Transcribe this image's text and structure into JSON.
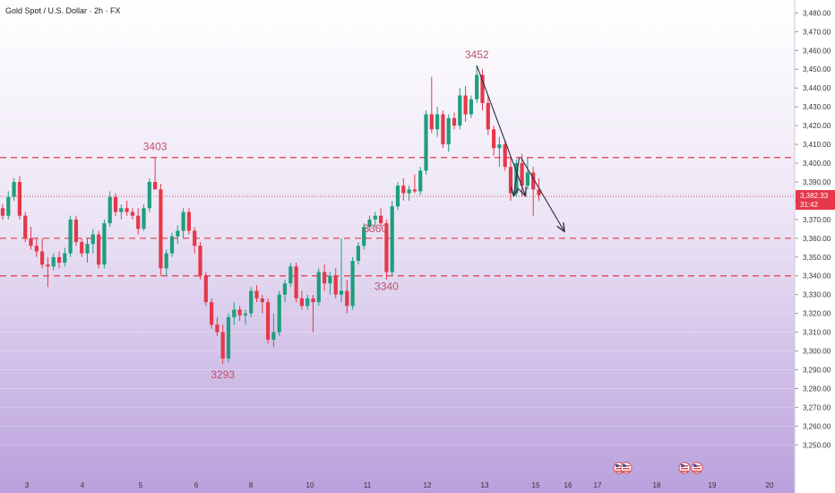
{
  "header": {
    "title": "Gold Spot / U.S. Dollar · 2h · FX"
  },
  "price_tag": {
    "price": "3,382.33",
    "countdown": "31:42",
    "color": "#e5384a"
  },
  "colors": {
    "up": "#1e9e7e",
    "down": "#e5384a",
    "level_line": "#e23a4a",
    "background_top": "#ffffff",
    "background_bottom": "#b9a0dc"
  },
  "event_icons": [
    "flag-us-icon",
    "flag-us-icon",
    "flag-us-icon",
    "flag-us-icon"
  ],
  "chart_data": {
    "type": "candlestick",
    "title": "Gold Spot / U.S. Dollar · 2h · FX",
    "y_ticks": [
      3250,
      3260,
      3270,
      3280,
      3290,
      3300,
      3310,
      3320,
      3330,
      3340,
      3350,
      3360,
      3370,
      3380,
      3390,
      3400,
      3410,
      3420,
      3430,
      3440,
      3450,
      3460,
      3470,
      3480
    ],
    "y_tick_labels": [
      "3,250.00",
      "3,260.00",
      "3,270.00",
      "3,280.00",
      "3,290.00",
      "3,300.00",
      "3,310.00",
      "3,320.00",
      "3,330.00",
      "3,340.00",
      "3,350.00",
      "3,360.00",
      "3,370.00",
      "3,380.00",
      "3,390.00",
      "3,400.00",
      "3,410.00",
      "3,420.00",
      "3,430.00",
      "3,440.00",
      "3,450.00",
      "3,460.00",
      "3,470.00",
      "3,480.00"
    ],
    "ylim": [
      3243,
      3484
    ],
    "x_ticks": [
      "3",
      "4",
      "5",
      "6",
      "8",
      "10",
      "11",
      "12",
      "13",
      "15",
      "16",
      "17",
      "18",
      "19",
      "20"
    ],
    "horizontal_levels": [
      3403,
      3360,
      3340
    ],
    "annotations": [
      {
        "text": "3403",
        "price": 3403
      },
      {
        "text": "3360",
        "price": 3360
      },
      {
        "text": "3340",
        "price": 3340
      },
      {
        "text": "3293",
        "price": 3293
      },
      {
        "text": "3452",
        "price": 3452
      }
    ],
    "current_price": 3382.33,
    "trend_arrows": [
      {
        "from": 3452,
        "to": 3383
      },
      {
        "from": 3403,
        "to": 3364
      }
    ],
    "candles": [
      {
        "o": 3376,
        "h": 3378,
        "l": 3370,
        "c": 3372
      },
      {
        "o": 3372,
        "h": 3385,
        "l": 3370,
        "c": 3382
      },
      {
        "o": 3382,
        "h": 3392,
        "l": 3380,
        "c": 3390
      },
      {
        "o": 3390,
        "h": 3393,
        "l": 3370,
        "c": 3372
      },
      {
        "o": 3372,
        "h": 3374,
        "l": 3358,
        "c": 3360
      },
      {
        "o": 3360,
        "h": 3366,
        "l": 3354,
        "c": 3356
      },
      {
        "o": 3356,
        "h": 3360,
        "l": 3350,
        "c": 3353
      },
      {
        "o": 3353,
        "h": 3360,
        "l": 3344,
        "c": 3346
      },
      {
        "o": 3346,
        "h": 3350,
        "l": 3334,
        "c": 3345
      },
      {
        "o": 3345,
        "h": 3352,
        "l": 3343,
        "c": 3350
      },
      {
        "o": 3350,
        "h": 3353,
        "l": 3344,
        "c": 3347
      },
      {
        "o": 3347,
        "h": 3355,
        "l": 3345,
        "c": 3352
      },
      {
        "o": 3352,
        "h": 3372,
        "l": 3350,
        "c": 3370
      },
      {
        "o": 3370,
        "h": 3372,
        "l": 3356,
        "c": 3358
      },
      {
        "o": 3358,
        "h": 3360,
        "l": 3350,
        "c": 3352
      },
      {
        "o": 3352,
        "h": 3360,
        "l": 3347,
        "c": 3357
      },
      {
        "o": 3357,
        "h": 3365,
        "l": 3352,
        "c": 3362
      },
      {
        "o": 3362,
        "h": 3364,
        "l": 3344,
        "c": 3346
      },
      {
        "o": 3346,
        "h": 3370,
        "l": 3344,
        "c": 3368
      },
      {
        "o": 3368,
        "h": 3385,
        "l": 3366,
        "c": 3382
      },
      {
        "o": 3382,
        "h": 3384,
        "l": 3372,
        "c": 3374
      },
      {
        "o": 3374,
        "h": 3378,
        "l": 3370,
        "c": 3376
      },
      {
        "o": 3376,
        "h": 3380,
        "l": 3372,
        "c": 3374
      },
      {
        "o": 3374,
        "h": 3376,
        "l": 3370,
        "c": 3372
      },
      {
        "o": 3372,
        "h": 3376,
        "l": 3362,
        "c": 3365
      },
      {
        "o": 3365,
        "h": 3378,
        "l": 3364,
        "c": 3376
      },
      {
        "o": 3376,
        "h": 3392,
        "l": 3374,
        "c": 3390
      },
      {
        "o": 3390,
        "h": 3403,
        "l": 3388,
        "c": 3386
      },
      {
        "o": 3386,
        "h": 3389,
        "l": 3340,
        "c": 3344
      },
      {
        "o": 3344,
        "h": 3354,
        "l": 3340,
        "c": 3352
      },
      {
        "o": 3352,
        "h": 3363,
        "l": 3350,
        "c": 3361
      },
      {
        "o": 3361,
        "h": 3367,
        "l": 3357,
        "c": 3364
      },
      {
        "o": 3364,
        "h": 3376,
        "l": 3360,
        "c": 3374
      },
      {
        "o": 3374,
        "h": 3376,
        "l": 3362,
        "c": 3364
      },
      {
        "o": 3364,
        "h": 3366,
        "l": 3352,
        "c": 3356
      },
      {
        "o": 3356,
        "h": 3358,
        "l": 3338,
        "c": 3340
      },
      {
        "o": 3340,
        "h": 3342,
        "l": 3324,
        "c": 3326
      },
      {
        "o": 3326,
        "h": 3328,
        "l": 3312,
        "c": 3314
      },
      {
        "o": 3314,
        "h": 3318,
        "l": 3308,
        "c": 3310
      },
      {
        "o": 3310,
        "h": 3314,
        "l": 3293,
        "c": 3296
      },
      {
        "o": 3296,
        "h": 3320,
        "l": 3294,
        "c": 3318
      },
      {
        "o": 3318,
        "h": 3326,
        "l": 3314,
        "c": 3322
      },
      {
        "o": 3322,
        "h": 3324,
        "l": 3316,
        "c": 3319
      },
      {
        "o": 3319,
        "h": 3322,
        "l": 3314,
        "c": 3320
      },
      {
        "o": 3320,
        "h": 3334,
        "l": 3318,
        "c": 3332
      },
      {
        "o": 3332,
        "h": 3335,
        "l": 3326,
        "c": 3328
      },
      {
        "o": 3328,
        "h": 3330,
        "l": 3320,
        "c": 3326
      },
      {
        "o": 3326,
        "h": 3328,
        "l": 3304,
        "c": 3306
      },
      {
        "o": 3306,
        "h": 3320,
        "l": 3302,
        "c": 3310
      },
      {
        "o": 3310,
        "h": 3332,
        "l": 3308,
        "c": 3330
      },
      {
        "o": 3330,
        "h": 3338,
        "l": 3326,
        "c": 3336
      },
      {
        "o": 3336,
        "h": 3347,
        "l": 3334,
        "c": 3345
      },
      {
        "o": 3345,
        "h": 3347,
        "l": 3326,
        "c": 3328
      },
      {
        "o": 3328,
        "h": 3332,
        "l": 3322,
        "c": 3324
      },
      {
        "o": 3324,
        "h": 3330,
        "l": 3322,
        "c": 3328
      },
      {
        "o": 3328,
        "h": 3330,
        "l": 3310,
        "c": 3326
      },
      {
        "o": 3326,
        "h": 3344,
        "l": 3324,
        "c": 3342
      },
      {
        "o": 3342,
        "h": 3346,
        "l": 3332,
        "c": 3336
      },
      {
        "o": 3336,
        "h": 3342,
        "l": 3330,
        "c": 3340
      },
      {
        "o": 3340,
        "h": 3344,
        "l": 3328,
        "c": 3330
      },
      {
        "o": 3330,
        "h": 3360,
        "l": 3326,
        "c": 3332
      },
      {
        "o": 3332,
        "h": 3338,
        "l": 3320,
        "c": 3324
      },
      {
        "o": 3324,
        "h": 3350,
        "l": 3322,
        "c": 3348
      },
      {
        "o": 3348,
        "h": 3358,
        "l": 3346,
        "c": 3356
      },
      {
        "o": 3356,
        "h": 3368,
        "l": 3354,
        "c": 3366
      },
      {
        "o": 3366,
        "h": 3372,
        "l": 3364,
        "c": 3370
      },
      {
        "o": 3370,
        "h": 3374,
        "l": 3366,
        "c": 3372
      },
      {
        "o": 3372,
        "h": 3376,
        "l": 3366,
        "c": 3368
      },
      {
        "o": 3368,
        "h": 3370,
        "l": 3338,
        "c": 3342
      },
      {
        "o": 3342,
        "h": 3380,
        "l": 3340,
        "c": 3377
      },
      {
        "o": 3377,
        "h": 3390,
        "l": 3375,
        "c": 3388
      },
      {
        "o": 3388,
        "h": 3392,
        "l": 3380,
        "c": 3384
      },
      {
        "o": 3384,
        "h": 3388,
        "l": 3380,
        "c": 3386
      },
      {
        "o": 3386,
        "h": 3394,
        "l": 3384,
        "c": 3385
      },
      {
        "o": 3385,
        "h": 3398,
        "l": 3383,
        "c": 3396
      },
      {
        "o": 3396,
        "h": 3428,
        "l": 3394,
        "c": 3426
      },
      {
        "o": 3426,
        "h": 3446,
        "l": 3416,
        "c": 3418
      },
      {
        "o": 3418,
        "h": 3430,
        "l": 3414,
        "c": 3426
      },
      {
        "o": 3426,
        "h": 3428,
        "l": 3408,
        "c": 3410
      },
      {
        "o": 3410,
        "h": 3426,
        "l": 3406,
        "c": 3424
      },
      {
        "o": 3424,
        "h": 3427,
        "l": 3418,
        "c": 3420
      },
      {
        "o": 3420,
        "h": 3440,
        "l": 3418,
        "c": 3436
      },
      {
        "o": 3436,
        "h": 3441,
        "l": 3422,
        "c": 3426
      },
      {
        "o": 3426,
        "h": 3436,
        "l": 3424,
        "c": 3434
      },
      {
        "o": 3434,
        "h": 3452,
        "l": 3432,
        "c": 3447
      },
      {
        "o": 3447,
        "h": 3450,
        "l": 3428,
        "c": 3432
      },
      {
        "o": 3432,
        "h": 3436,
        "l": 3415,
        "c": 3418
      },
      {
        "o": 3418,
        "h": 3420,
        "l": 3404,
        "c": 3408
      },
      {
        "o": 3408,
        "h": 3414,
        "l": 3398,
        "c": 3410
      },
      {
        "o": 3410,
        "h": 3412,
        "l": 3396,
        "c": 3398
      },
      {
        "o": 3398,
        "h": 3404,
        "l": 3380,
        "c": 3384
      },
      {
        "o": 3384,
        "h": 3402,
        "l": 3382,
        "c": 3400
      },
      {
        "o": 3400,
        "h": 3405,
        "l": 3382,
        "c": 3388
      },
      {
        "o": 3388,
        "h": 3403,
        "l": 3386,
        "c": 3395
      },
      {
        "o": 3395,
        "h": 3398,
        "l": 3372,
        "c": 3386
      },
      {
        "o": 3386,
        "h": 3392,
        "l": 3380,
        "c": 3383
      }
    ]
  }
}
